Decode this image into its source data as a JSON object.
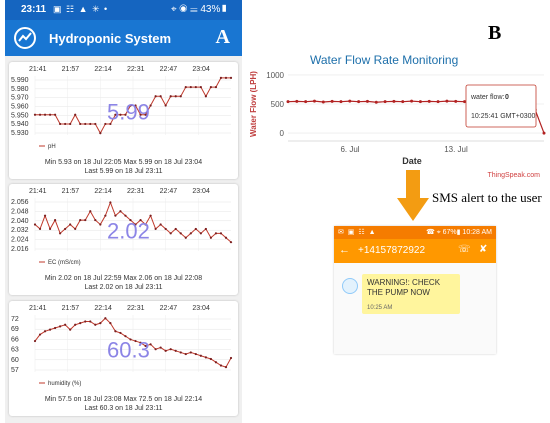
{
  "panel_a": {
    "label": "A",
    "status_bar": {
      "time": "23:11",
      "indicators": "▣ ☷ ▲ ✳ •",
      "right": "⌖ ◉ ☰ 43%▮"
    },
    "app_title": "Hydroponic System",
    "charts": [
      {
        "x_ticks": [
          "21:41",
          "21:57",
          "22:14",
          "22:31",
          "22:47",
          "23:04"
        ],
        "y_ticks": [
          "5.990",
          "5.980",
          "5.970",
          "5.960",
          "5.950",
          "5.940",
          "5.930"
        ],
        "big_value": "5.99",
        "legend": "pH",
        "min_line": "Min  5.93 on 18 Jul 22:05   Max  5.99 on 18 Jul 23:04",
        "last_line": "Last  5.99 on 18 Jul 23:11",
        "chart_data": {
          "type": "line",
          "ylim": [
            5.928,
            5.992
          ],
          "values": [
            5.95,
            5.95,
            5.95,
            5.95,
            5.95,
            5.94,
            5.94,
            5.94,
            5.95,
            5.94,
            5.94,
            5.94,
            5.94,
            5.93,
            5.94,
            5.94,
            5.95,
            5.95,
            5.95,
            5.96,
            5.96,
            5.95,
            5.95,
            5.96,
            5.97,
            5.97,
            5.96,
            5.97,
            5.97,
            5.97,
            5.98,
            5.98,
            5.98,
            5.98,
            5.97,
            5.98,
            5.98,
            5.99,
            5.99,
            5.99
          ]
        }
      },
      {
        "x_ticks": [
          "21:41",
          "21:57",
          "22:14",
          "22:31",
          "22:47",
          "23:04"
        ],
        "y_ticks": [
          "2.056",
          "2.048",
          "2.040",
          "2.032",
          "2.024",
          "2.016"
        ],
        "big_value": "2.02",
        "legend": "EC (mS/cm)",
        "min_line": "Min  2.02 on 18 Jul 22:59   Max  2.06 on 18 Jul 22:08",
        "last_line": "Last  2.02 on 18 Jul 23:11",
        "chart_data": {
          "type": "line",
          "ylim": [
            2.012,
            2.06
          ],
          "values": [
            2.036,
            2.032,
            2.044,
            2.032,
            2.04,
            2.028,
            2.032,
            2.036,
            2.032,
            2.04,
            2.04,
            2.048,
            2.04,
            2.036,
            2.044,
            2.056,
            2.044,
            2.048,
            2.044,
            2.04,
            2.036,
            2.04,
            2.036,
            2.044,
            2.032,
            2.036,
            2.032,
            2.028,
            2.032,
            2.028,
            2.024,
            2.028,
            2.032,
            2.028,
            2.032,
            2.024,
            2.028,
            2.028,
            2.024,
            2.02
          ]
        }
      },
      {
        "x_ticks": [
          "21:41",
          "21:57",
          "22:14",
          "22:31",
          "22:47",
          "23:04"
        ],
        "y_ticks": [
          "72",
          "69",
          "66",
          "63",
          "60",
          "57"
        ],
        "big_value": "60.3",
        "legend": "humidity (%)",
        "min_line": "Min  57.5 on 18 Jul 23:08   Max  72.5 on 18 Jul 22:14",
        "last_line": "Last  60.3 on 18 Jul 23:11",
        "chart_data": {
          "type": "line",
          "ylim": [
            56,
            73.5
          ],
          "values": [
            65.5,
            67.5,
            68.5,
            69,
            69.5,
            70,
            70.5,
            69,
            70.5,
            71,
            71.5,
            71.5,
            70.5,
            71,
            72.5,
            71,
            68.5,
            68,
            67,
            66,
            65.5,
            65,
            64,
            64.5,
            63,
            63.5,
            62.5,
            63,
            62.5,
            62,
            61.5,
            62,
            61.5,
            61,
            60.5,
            60,
            59,
            58,
            57.5,
            60.3
          ]
        }
      }
    ]
  },
  "panel_b": {
    "label": "B",
    "chart": {
      "title": "Water Flow Rate Monitoring",
      "ylabel": "Water Flow (LPH)",
      "xlabel": "Date",
      "credit": "ThingSpeak.com",
      "tooltip_label": "water flow:",
      "tooltip_value": "0",
      "tooltip_time": "10:25:41 GMT+0300",
      "chart_data": {
        "type": "line",
        "y_ticks": [
          "1000",
          "500",
          "0"
        ],
        "x_ticks": [
          "6. Jul",
          "13. Jul"
        ],
        "ylim": [
          -50,
          1050
        ],
        "values": [
          540,
          545,
          540,
          550,
          535,
          545,
          540,
          550,
          540,
          545,
          530,
          540,
          545,
          540,
          550,
          540,
          545,
          540,
          550,
          545,
          540,
          545,
          550,
          545,
          540,
          550,
          545,
          540,
          400,
          0
        ]
      }
    },
    "sms_caption": "SMS alert to the user",
    "sms": {
      "status_left": "✉ ▣ ☷ ▲",
      "status_right": "☎ ⌖ 67%▮ 10:28 AM",
      "back_icon": "←",
      "phone_number": "+14157872922",
      "call_icon": "☏",
      "delete_icon": "✘",
      "message": "WARNING!: CHECK THE PUMP NOW",
      "time": "10:25 AM"
    }
  }
}
